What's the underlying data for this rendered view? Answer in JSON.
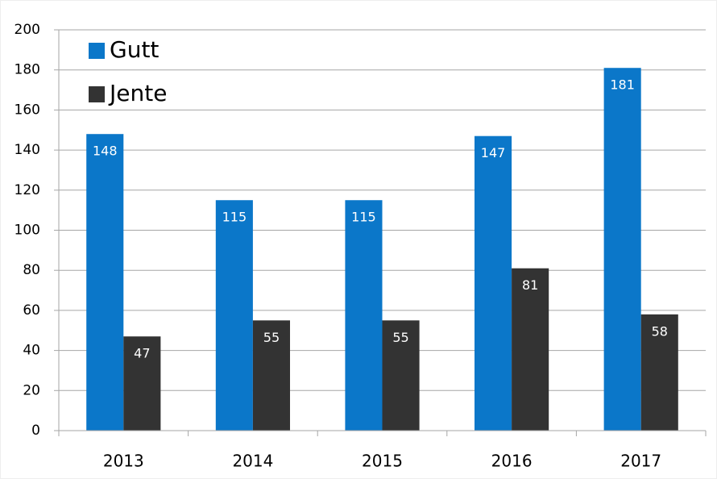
{
  "chart_data": {
    "type": "bar",
    "categories": [
      "2013",
      "2014",
      "2015",
      "2016",
      "2017"
    ],
    "series": [
      {
        "name": "Gutt",
        "color": "#0b77c9",
        "values": [
          148,
          115,
          115,
          147,
          181
        ]
      },
      {
        "name": "Jente",
        "color": "#333333",
        "values": [
          47,
          55,
          55,
          81,
          58
        ]
      }
    ],
    "ylim": [
      0,
      200
    ],
    "yticks": [
      0,
      20,
      40,
      60,
      80,
      100,
      120,
      140,
      160,
      180,
      200
    ],
    "grid": true,
    "legend": "upper left",
    "data_labels": true
  }
}
